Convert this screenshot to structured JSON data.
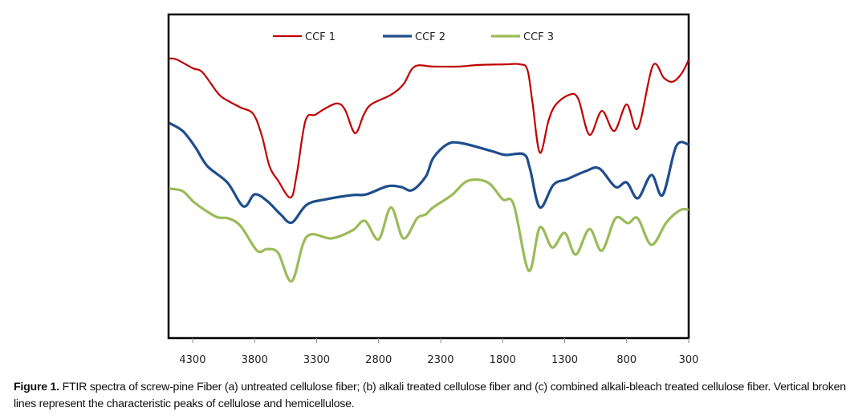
{
  "chart_data": {
    "type": "line",
    "title": "",
    "xlabel": "",
    "ylabel": "",
    "x_reversed": true,
    "xlim": [
      4490,
      300
    ],
    "ylim": [
      0,
      100
    ],
    "x_ticks": [
      4300,
      3800,
      3300,
      2800,
      2300,
      1800,
      1300,
      800,
      300
    ],
    "x_tick_labels": [
      "4300",
      "3800",
      "3300",
      "2800",
      "2300",
      "1800",
      "1300",
      "800",
      "300"
    ],
    "y_ticks_shown": false,
    "grid": false,
    "legend_position": "top-center",
    "series": [
      {
        "name": "CCF 1",
        "color": "#c00000",
        "points": [
          [
            4490,
            86.4
          ],
          [
            4430,
            86.1
          ],
          [
            4300,
            83.4
          ],
          [
            4220,
            82.1
          ],
          [
            4090,
            75.4
          ],
          [
            4000,
            73.0
          ],
          [
            3910,
            71.2
          ],
          [
            3810,
            69.2
          ],
          [
            3740,
            62.3
          ],
          [
            3680,
            53.1
          ],
          [
            3610,
            48.6
          ],
          [
            3510,
            43.4
          ],
          [
            3460,
            50.6
          ],
          [
            3390,
            67.2
          ],
          [
            3310,
            69.0
          ],
          [
            3220,
            71.2
          ],
          [
            3130,
            72.5
          ],
          [
            3070,
            70.5
          ],
          [
            2990,
            63.3
          ],
          [
            2920,
            69.0
          ],
          [
            2860,
            72.2
          ],
          [
            2700,
            75.2
          ],
          [
            2600,
            78.4
          ],
          [
            2510,
            83.9
          ],
          [
            2360,
            83.9
          ],
          [
            2160,
            83.9
          ],
          [
            1990,
            84.4
          ],
          [
            1780,
            84.6
          ],
          [
            1660,
            84.6
          ],
          [
            1600,
            82.9
          ],
          [
            1560,
            73.0
          ],
          [
            1500,
            57.3
          ],
          [
            1430,
            67.2
          ],
          [
            1370,
            72.2
          ],
          [
            1260,
            75.2
          ],
          [
            1190,
            73.9
          ],
          [
            1100,
            62.8
          ],
          [
            1000,
            70.2
          ],
          [
            900,
            64.0
          ],
          [
            800,
            72.2
          ],
          [
            710,
            64.8
          ],
          [
            590,
            84.1
          ],
          [
            500,
            80.4
          ],
          [
            430,
            79.2
          ],
          [
            360,
            81.6
          ],
          [
            300,
            85.9
          ]
        ]
      },
      {
        "name": "CCF 2",
        "color": "#1f4e8c",
        "points": [
          [
            4490,
            66.5
          ],
          [
            4380,
            64.0
          ],
          [
            4280,
            59.1
          ],
          [
            4180,
            53.1
          ],
          [
            4020,
            48.1
          ],
          [
            3890,
            40.7
          ],
          [
            3800,
            44.4
          ],
          [
            3700,
            42.4
          ],
          [
            3590,
            38.2
          ],
          [
            3500,
            35.7
          ],
          [
            3380,
            41.2
          ],
          [
            3220,
            42.9
          ],
          [
            3010,
            44.2
          ],
          [
            2900,
            44.4
          ],
          [
            2730,
            46.9
          ],
          [
            2620,
            46.7
          ],
          [
            2530,
            45.7
          ],
          [
            2420,
            49.9
          ],
          [
            2360,
            55.6
          ],
          [
            2250,
            59.8
          ],
          [
            2140,
            60.3
          ],
          [
            1890,
            57.8
          ],
          [
            1780,
            56.6
          ],
          [
            1630,
            56.8
          ],
          [
            1580,
            52.4
          ],
          [
            1500,
            40.4
          ],
          [
            1390,
            47.4
          ],
          [
            1280,
            49.1
          ],
          [
            1130,
            51.6
          ],
          [
            1020,
            52.4
          ],
          [
            890,
            46.7
          ],
          [
            800,
            48.1
          ],
          [
            710,
            43.2
          ],
          [
            600,
            50.4
          ],
          [
            510,
            44.2
          ],
          [
            400,
            59.3
          ],
          [
            300,
            59.8
          ]
        ]
      },
      {
        "name": "CCF 3",
        "color": "#9bbb59",
        "points": [
          [
            4490,
            46.2
          ],
          [
            4380,
            45.4
          ],
          [
            4280,
            41.7
          ],
          [
            4110,
            37.5
          ],
          [
            4010,
            37.0
          ],
          [
            3910,
            34.5
          ],
          [
            3780,
            27.0
          ],
          [
            3700,
            27.5
          ],
          [
            3610,
            26.3
          ],
          [
            3500,
            17.6
          ],
          [
            3380,
            31.3
          ],
          [
            3180,
            30.8
          ],
          [
            3010,
            33.3
          ],
          [
            2910,
            36.2
          ],
          [
            2800,
            30.5
          ],
          [
            2700,
            40.4
          ],
          [
            2600,
            30.8
          ],
          [
            2490,
            37.0
          ],
          [
            2420,
            38.2
          ],
          [
            2360,
            40.4
          ],
          [
            2210,
            44.2
          ],
          [
            2080,
            48.6
          ],
          [
            1920,
            48.1
          ],
          [
            1800,
            42.9
          ],
          [
            1710,
            41.2
          ],
          [
            1590,
            20.8
          ],
          [
            1500,
            34.2
          ],
          [
            1400,
            28.0
          ],
          [
            1300,
            32.5
          ],
          [
            1210,
            25.8
          ],
          [
            1100,
            33.7
          ],
          [
            1000,
            27.0
          ],
          [
            890,
            37.0
          ],
          [
            790,
            35.5
          ],
          [
            710,
            37.0
          ],
          [
            600,
            28.8
          ],
          [
            480,
            35.7
          ],
          [
            370,
            39.5
          ],
          [
            300,
            39.7
          ]
        ]
      }
    ]
  },
  "caption": {
    "label": "Figure 1.",
    "text": " FTIR spectra of screw-pine Fiber (a) untreated cellulose fiber; (b) alkali treated cellulose fiber and (c) combined alkali-bleach treated cellulose fiber. Vertical broken lines represent the characteristic peaks of cellulose and hemicellulose."
  }
}
